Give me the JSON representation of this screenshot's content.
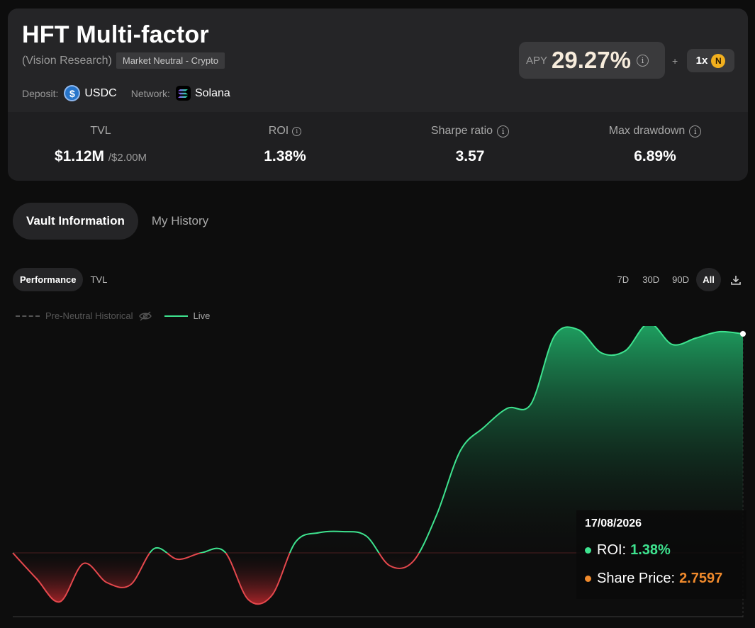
{
  "vault": {
    "title": "HFT Multi-factor",
    "provider": "(Vision Research)",
    "tag": "Market Neutral - Crypto",
    "deposit_label": "Deposit:",
    "deposit_asset": "USDC",
    "network_label": "Network:",
    "network": "Solana",
    "apy_label": "APY",
    "apy_value": "29.27%",
    "plus": "+",
    "boost": "1x"
  },
  "stats": {
    "tvl_label": "TVL",
    "tvl_value": "$1.12M",
    "tvl_cap": "/$2.00M",
    "roi_label": "ROI",
    "roi_value": "1.38%",
    "sharpe_label": "Sharpe ratio",
    "sharpe_value": "3.57",
    "mdd_label": "Max drawdown",
    "mdd_value": "6.89%"
  },
  "tabs": [
    {
      "label": "Vault Information",
      "active": true
    },
    {
      "label": "My History",
      "active": false
    }
  ],
  "chart_tabs": [
    {
      "label": "Performance",
      "active": true
    },
    {
      "label": "TVL",
      "active": false
    }
  ],
  "ranges": [
    {
      "label": "7D",
      "active": false
    },
    {
      "label": "30D",
      "active": false
    },
    {
      "label": "90D",
      "active": false
    },
    {
      "label": "All",
      "active": true
    }
  ],
  "legend": {
    "historical": "Pre-Neutral Historical",
    "live": "Live"
  },
  "tooltip": {
    "date": "17/08/2026",
    "roi_label": "ROI:",
    "roi_value": "1.38%",
    "share_label": "Share Price:",
    "share_value": "2.7597"
  },
  "colors": {
    "positive": "#3ee38f",
    "negative": "#e5484d",
    "share_price": "#f08a2c",
    "apy": "#f7ecdc"
  },
  "chart_data": {
    "type": "area",
    "baseline": 0,
    "y": [
      0,
      -1.2,
      -2.3,
      -0.5,
      -1.4,
      -1.5,
      0.2,
      -0.3,
      0,
      0.05,
      -2.2,
      -2.0,
      0.5,
      0.95,
      1.0,
      0.8,
      -0.6,
      -0.4,
      1.8,
      4.8,
      5.9,
      6.8,
      7.0,
      10.2,
      10.5,
      9.4,
      9.5,
      10.8,
      9.8,
      10.1,
      10.4,
      10.3
    ]
  }
}
